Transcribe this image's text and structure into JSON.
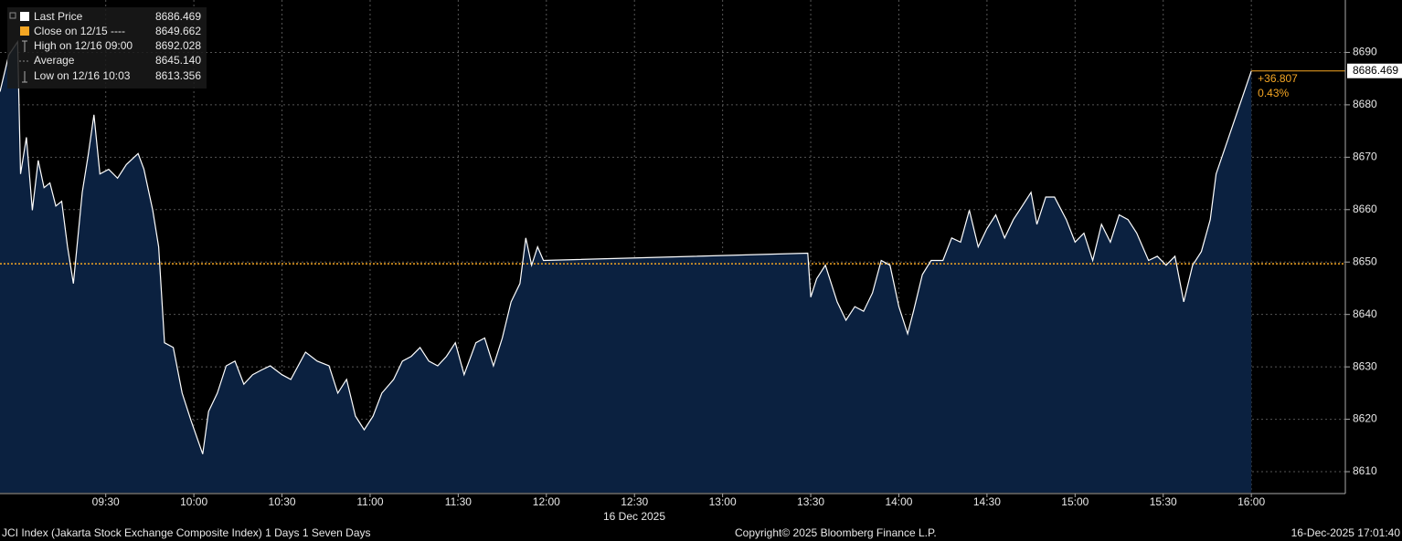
{
  "chart_data": {
    "type": "area",
    "x": [
      534,
      537,
      540,
      541,
      543,
      545,
      547,
      549,
      551,
      553,
      555,
      557,
      559,
      562,
      564,
      566,
      568,
      571,
      574,
      577,
      581,
      583,
      586,
      588,
      590,
      593,
      596,
      599,
      603,
      605,
      608,
      611,
      614,
      617,
      620,
      623,
      626,
      630,
      633,
      638,
      642,
      646,
      649,
      652,
      655,
      658,
      661,
      664,
      668,
      671,
      674,
      677,
      680,
      683,
      686,
      689,
      692,
      696,
      699,
      702,
      705,
      708,
      711,
      713,
      715,
      717,
      719,
      809,
      810,
      812,
      815,
      819,
      822,
      825,
      828,
      831,
      834,
      837,
      840,
      843,
      845,
      848,
      851,
      855,
      858,
      861,
      864,
      867,
      870,
      873,
      876,
      879,
      882,
      885,
      887,
      890,
      893,
      897,
      900,
      903,
      906,
      909,
      912,
      915,
      918,
      921,
      925,
      928,
      931,
      934,
      937,
      940,
      943,
      946,
      948,
      960
    ],
    "series": [
      {
        "name": "Last Price",
        "color": "#ffffff",
        "fill": "#0b2140",
        "value_label": "8686.469",
        "values": [
          8682.5,
          8689.5,
          8692.028,
          8666.8,
          8673.8,
          8659.9,
          8669.4,
          8664.2,
          8665.1,
          8660.7,
          8661.6,
          8652.9,
          8645.9,
          8663.3,
          8670.3,
          8678.1,
          8666.8,
          8667.7,
          8666.0,
          8668.6,
          8670.7,
          8667.7,
          8659.9,
          8652.9,
          8634.6,
          8633.7,
          8625.0,
          8619.8,
          8613.356,
          8621.5,
          8625.0,
          8630.2,
          8631.1,
          8626.7,
          8628.5,
          8629.4,
          8630.2,
          8628.5,
          8627.6,
          8632.8,
          8631.1,
          8630.2,
          8625.0,
          8627.6,
          8620.6,
          8618.0,
          8620.6,
          8625.0,
          8627.6,
          8631.1,
          8632.0,
          8633.7,
          8631.1,
          8630.2,
          8632.0,
          8634.6,
          8628.5,
          8634.6,
          8635.5,
          8630.2,
          8635.5,
          8642.4,
          8645.9,
          8654.6,
          8649.4,
          8652.9,
          8650.3,
          8651.7,
          8643.3,
          8646.8,
          8649.4,
          8642.4,
          8638.9,
          8641.5,
          8640.6,
          8644.1,
          8650.3,
          8649.4,
          8641.5,
          8636.3,
          8640.6,
          8647.6,
          8650.3,
          8650.3,
          8654.6,
          8653.8,
          8659.9,
          8652.9,
          8656.4,
          8659.0,
          8654.6,
          8658.1,
          8660.7,
          8663.3,
          8657.2,
          8662.4,
          8662.4,
          8658.1,
          8653.8,
          8655.5,
          8650.3,
          8657.2,
          8653.8,
          8659.0,
          8658.1,
          8655.5,
          8650.3,
          8651.1,
          8649.4,
          8651.1,
          8642.4,
          8649.4,
          8652.0,
          8658.1,
          8666.8,
          8686.469
        ]
      }
    ],
    "stats": [
      {
        "label": "Close on 12/15 ----",
        "value": "8649.662"
      },
      {
        "label": "High on 12/16 09:00",
        "value": "8692.028"
      },
      {
        "label": "Average",
        "value": "8645.140"
      },
      {
        "label": "Low on 12/16 10:03",
        "value": "8613.356"
      }
    ],
    "close_line": {
      "value": 8649.662,
      "color": "#f5a623"
    },
    "change": {
      "text": "+36.807",
      "percent": "0.43%",
      "color": "#f5a623"
    },
    "xlim": [
      534,
      992
    ],
    "xticks": [
      {
        "value": 570,
        "label": "09:30"
      },
      {
        "value": 600,
        "label": "10:00"
      },
      {
        "value": 630,
        "label": "10:30"
      },
      {
        "value": 660,
        "label": "11:00"
      },
      {
        "value": 690,
        "label": "11:30"
      },
      {
        "value": 720,
        "label": "12:00"
      },
      {
        "value": 750,
        "label": "12:30"
      },
      {
        "value": 780,
        "label": "13:00"
      },
      {
        "value": 810,
        "label": "13:30"
      },
      {
        "value": 840,
        "label": "14:00"
      },
      {
        "value": 870,
        "label": "14:30"
      },
      {
        "value": 900,
        "label": "15:00"
      },
      {
        "value": 930,
        "label": "15:30"
      },
      {
        "value": 960,
        "label": "16:00"
      }
    ],
    "x_date_label": "16 Dec 2025",
    "ylim": [
      8606,
      8700
    ],
    "yticks": [
      8610,
      8620,
      8630,
      8640,
      8650,
      8660,
      8670,
      8680,
      8690
    ],
    "grid": true
  },
  "footer": {
    "left": "JCI Index (Jakarta Stock Exchange Composite Index) 1 Days 1 Seven Days",
    "center": "Copyright© 2025 Bloomberg Finance L.P.",
    "right": "16-Dec-2025 17:01:40"
  }
}
